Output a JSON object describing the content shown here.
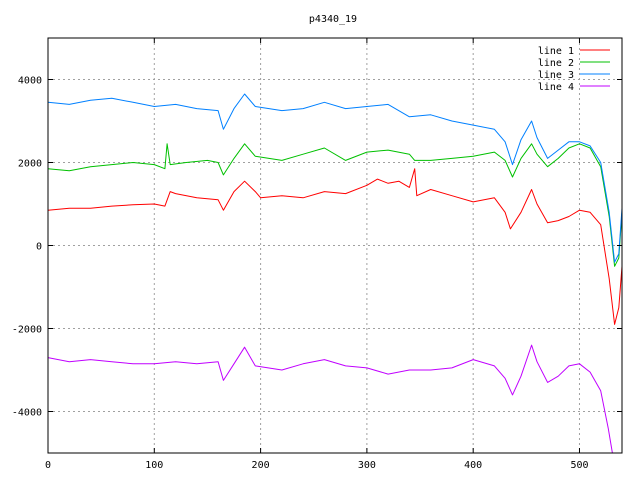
{
  "chart_data": {
    "type": "line",
    "title": "p4340_19",
    "xlabel": "",
    "ylabel": "",
    "xlim": [
      0,
      540
    ],
    "ylim": [
      -5000,
      5000
    ],
    "x_ticks": [
      0,
      100,
      200,
      300,
      400,
      500
    ],
    "y_ticks": [
      -4000,
      -2000,
      0,
      2000,
      4000
    ],
    "grid": true,
    "legend_position": "top-right",
    "series": [
      {
        "name": "line 1",
        "color": "#ff0000",
        "points": [
          [
            0,
            850
          ],
          [
            20,
            900
          ],
          [
            40,
            900
          ],
          [
            60,
            950
          ],
          [
            80,
            980
          ],
          [
            100,
            1000
          ],
          [
            110,
            950
          ],
          [
            115,
            1300
          ],
          [
            120,
            1250
          ],
          [
            140,
            1150
          ],
          [
            160,
            1100
          ],
          [
            165,
            850
          ],
          [
            175,
            1300
          ],
          [
            185,
            1550
          ],
          [
            195,
            1300
          ],
          [
            200,
            1150
          ],
          [
            220,
            1200
          ],
          [
            240,
            1150
          ],
          [
            260,
            1300
          ],
          [
            280,
            1250
          ],
          [
            300,
            1450
          ],
          [
            310,
            1600
          ],
          [
            320,
            1500
          ],
          [
            330,
            1550
          ],
          [
            340,
            1400
          ],
          [
            345,
            1850
          ],
          [
            347,
            1200
          ],
          [
            360,
            1350
          ],
          [
            380,
            1200
          ],
          [
            400,
            1050
          ],
          [
            420,
            1150
          ],
          [
            430,
            800
          ],
          [
            435,
            400
          ],
          [
            445,
            800
          ],
          [
            455,
            1350
          ],
          [
            460,
            1000
          ],
          [
            470,
            550
          ],
          [
            480,
            600
          ],
          [
            490,
            700
          ],
          [
            500,
            850
          ],
          [
            510,
            800
          ],
          [
            520,
            500
          ],
          [
            528,
            -800
          ],
          [
            533,
            -1900
          ],
          [
            537,
            -1500
          ],
          [
            540,
            -500
          ]
        ]
      },
      {
        "name": "line 2",
        "color": "#00c000",
        "points": [
          [
            0,
            1850
          ],
          [
            20,
            1800
          ],
          [
            40,
            1900
          ],
          [
            60,
            1950
          ],
          [
            80,
            2000
          ],
          [
            100,
            1950
          ],
          [
            110,
            1850
          ],
          [
            112,
            2450
          ],
          [
            115,
            1950
          ],
          [
            130,
            2000
          ],
          [
            150,
            2050
          ],
          [
            160,
            2000
          ],
          [
            165,
            1700
          ],
          [
            175,
            2100
          ],
          [
            185,
            2450
          ],
          [
            195,
            2150
          ],
          [
            220,
            2050
          ],
          [
            240,
            2200
          ],
          [
            260,
            2350
          ],
          [
            280,
            2050
          ],
          [
            300,
            2250
          ],
          [
            320,
            2300
          ],
          [
            340,
            2200
          ],
          [
            345,
            2050
          ],
          [
            360,
            2050
          ],
          [
            380,
            2100
          ],
          [
            400,
            2150
          ],
          [
            420,
            2250
          ],
          [
            430,
            2050
          ],
          [
            437,
            1650
          ],
          [
            445,
            2100
          ],
          [
            455,
            2450
          ],
          [
            460,
            2200
          ],
          [
            470,
            1900
          ],
          [
            480,
            2100
          ],
          [
            490,
            2350
          ],
          [
            500,
            2450
          ],
          [
            510,
            2350
          ],
          [
            520,
            1900
          ],
          [
            528,
            700
          ],
          [
            533,
            -500
          ],
          [
            537,
            -300
          ],
          [
            540,
            800
          ]
        ]
      },
      {
        "name": "line 3",
        "color": "#0080ff",
        "points": [
          [
            0,
            3450
          ],
          [
            20,
            3400
          ],
          [
            40,
            3500
          ],
          [
            60,
            3550
          ],
          [
            80,
            3450
          ],
          [
            100,
            3350
          ],
          [
            120,
            3400
          ],
          [
            140,
            3300
          ],
          [
            160,
            3250
          ],
          [
            165,
            2800
          ],
          [
            175,
            3300
          ],
          [
            185,
            3650
          ],
          [
            195,
            3350
          ],
          [
            220,
            3250
          ],
          [
            240,
            3300
          ],
          [
            260,
            3450
          ],
          [
            280,
            3300
          ],
          [
            300,
            3350
          ],
          [
            320,
            3400
          ],
          [
            340,
            3100
          ],
          [
            360,
            3150
          ],
          [
            380,
            3000
          ],
          [
            400,
            2900
          ],
          [
            420,
            2800
          ],
          [
            430,
            2500
          ],
          [
            437,
            1950
          ],
          [
            445,
            2550
          ],
          [
            455,
            3000
          ],
          [
            460,
            2600
          ],
          [
            470,
            2100
          ],
          [
            480,
            2300
          ],
          [
            490,
            2500
          ],
          [
            500,
            2500
          ],
          [
            510,
            2400
          ],
          [
            520,
            2000
          ],
          [
            528,
            800
          ],
          [
            533,
            -400
          ],
          [
            537,
            -200
          ],
          [
            540,
            900
          ]
        ]
      },
      {
        "name": "line 4",
        "color": "#c000ff",
        "points": [
          [
            0,
            -2700
          ],
          [
            20,
            -2800
          ],
          [
            40,
            -2750
          ],
          [
            60,
            -2800
          ],
          [
            80,
            -2850
          ],
          [
            100,
            -2850
          ],
          [
            120,
            -2800
          ],
          [
            140,
            -2850
          ],
          [
            160,
            -2800
          ],
          [
            165,
            -3250
          ],
          [
            175,
            -2850
          ],
          [
            185,
            -2450
          ],
          [
            195,
            -2900
          ],
          [
            220,
            -3000
          ],
          [
            240,
            -2850
          ],
          [
            260,
            -2750
          ],
          [
            280,
            -2900
          ],
          [
            300,
            -2950
          ],
          [
            320,
            -3100
          ],
          [
            340,
            -3000
          ],
          [
            360,
            -3000
          ],
          [
            380,
            -2950
          ],
          [
            400,
            -2750
          ],
          [
            420,
            -2900
          ],
          [
            430,
            -3200
          ],
          [
            437,
            -3600
          ],
          [
            445,
            -3150
          ],
          [
            455,
            -2400
          ],
          [
            460,
            -2800
          ],
          [
            470,
            -3300
          ],
          [
            480,
            -3150
          ],
          [
            490,
            -2900
          ],
          [
            500,
            -2850
          ],
          [
            510,
            -3050
          ],
          [
            520,
            -3500
          ],
          [
            527,
            -4400
          ],
          [
            531,
            -5000
          ]
        ]
      }
    ]
  }
}
